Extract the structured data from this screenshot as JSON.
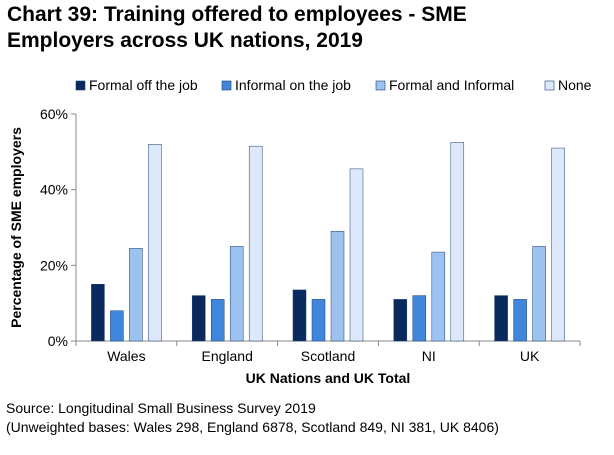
{
  "title_line1": "Chart 39: Training offered to employees - SME",
  "title_line2": "Employers across UK nations, 2019",
  "colors": {
    "Formal off the job": "#0a2a5e",
    "Informal on the job": "#3f86dc",
    "Formal and Informal": "#9cc3f0",
    "None": "#dde9fa",
    "axis": "#888888",
    "grid": "#d9d9d9"
  },
  "chart_data": {
    "type": "bar",
    "title": "Chart 39: Training offered to employees - SME Employers across UK nations, 2019",
    "categories": [
      "Wales",
      "England",
      "Scotland",
      "NI",
      "UK"
    ],
    "series": [
      {
        "name": "Formal off the job",
        "values": [
          15,
          12,
          13.5,
          11,
          12
        ]
      },
      {
        "name": "Informal on the job",
        "values": [
          8,
          11,
          11,
          12,
          11
        ]
      },
      {
        "name": "Formal and Informal",
        "values": [
          24.5,
          25,
          29,
          23.5,
          25
        ]
      },
      {
        "name": "None",
        "values": [
          52,
          51.5,
          45.5,
          52.5,
          51
        ]
      }
    ],
    "xlabel": "UK Nations and UK Total",
    "ylabel": "Percentage of SME employers",
    "ylim": [
      0,
      60
    ],
    "yticks": [
      0,
      20,
      40,
      60
    ],
    "ytick_labels": [
      "0%",
      "20%",
      "40%",
      "60%"
    ],
    "grid": false,
    "legend_position": "top"
  },
  "source": {
    "line1": "Source: Longitudinal Small Business Survey 2019",
    "line2": "(Unweighted bases: Wales 298, England 6878, Scotland 849, NI 381, UK 8406)"
  }
}
